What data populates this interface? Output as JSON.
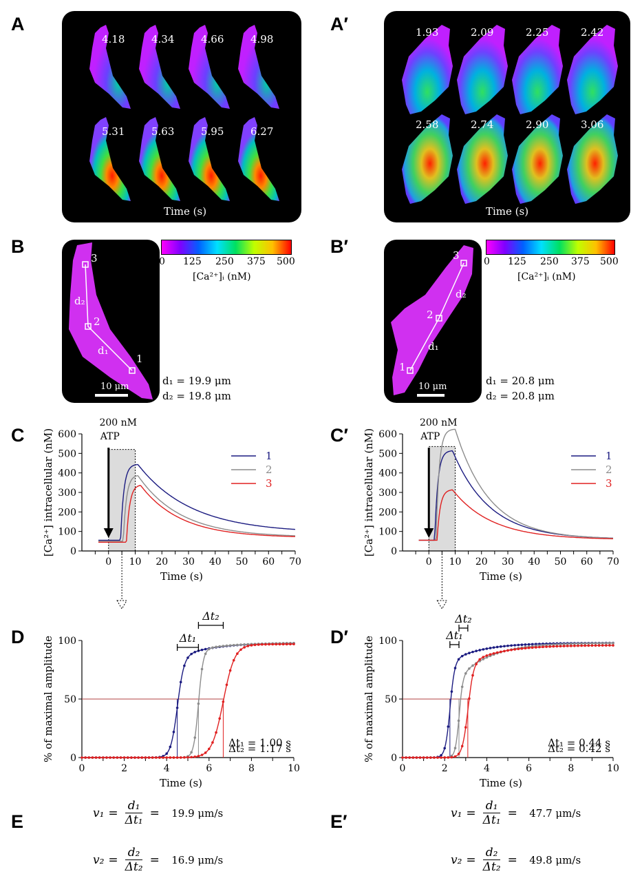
{
  "panel_labels": {
    "A": "A",
    "A_prime": "A′",
    "B": "B",
    "B_prime": "B′",
    "C": "C",
    "C_prime": "C′",
    "D": "D",
    "D_prime": "D′",
    "E": "E",
    "E_prime": "E′"
  },
  "panel_A": {
    "timestamps": [
      "4.18",
      "4.34",
      "4.66",
      "4.98",
      "5.31",
      "5.63",
      "5.95",
      "6.27"
    ],
    "time_label": "Time (s)"
  },
  "panel_A_prime": {
    "timestamps": [
      "1.93",
      "2.09",
      "2.25",
      "2.42",
      "2.58",
      "2.74",
      "2.90",
      "3.06"
    ],
    "time_label": "Time (s)"
  },
  "colorbar": {
    "ticks": [
      "0",
      "125",
      "250",
      "375",
      "500"
    ],
    "label": "[Ca²⁺]ᵢ (nM)"
  },
  "panel_B": {
    "points": [
      "1",
      "2",
      "3"
    ],
    "d1_label": "d₁",
    "d2_label": "d₂",
    "scale_bar": "10 μm",
    "d1_text": "d₁ = 19.9 μm",
    "d2_text": "d₂ = 19.8 μm"
  },
  "panel_B_prime": {
    "points": [
      "1",
      "2",
      "3"
    ],
    "d1_label": "d₁",
    "d2_label": "d₂",
    "scale_bar": "10 μm",
    "d1_text": "d₁ = 20.8 μm",
    "d2_text": "d₂ = 20.8 μm"
  },
  "colors": {
    "series1": "#1a1a80",
    "series2": "#8c8c8c",
    "series3": "#e02020",
    "threshold": "#b04040"
  },
  "stimulus": {
    "line1": "200 nM",
    "line2": "ATP"
  },
  "chart_data": [
    {
      "id": "C",
      "type": "line",
      "xlabel": "Time (s)",
      "ylabel": "[Ca²⁺] intracellular (nM)",
      "xlim": [
        -10,
        70
      ],
      "ylim": [
        0,
        600
      ],
      "xticks": [
        0,
        10,
        20,
        30,
        40,
        50,
        60,
        70
      ],
      "yticks": [
        0,
        100,
        200,
        300,
        400,
        500,
        600
      ],
      "highlight_x": [
        0,
        10
      ],
      "series": [
        {
          "name": "1",
          "baseline": 55,
          "onset": 4.5,
          "peak": 445,
          "peak_t": 11,
          "tau": 20,
          "end": 92
        },
        {
          "name": "2",
          "baseline": 50,
          "onset": 5.5,
          "peak": 390,
          "peak_t": 11,
          "tau": 16,
          "end": 70
        },
        {
          "name": "3",
          "baseline": 45,
          "onset": 6.7,
          "peak": 340,
          "peak_t": 12,
          "tau": 15,
          "end": 68
        }
      ]
    },
    {
      "id": "C_prime",
      "type": "line",
      "xlabel": "Time (s)",
      "ylabel": "[Ca²⁺] intracellular (nM)",
      "xlim": [
        -10,
        70
      ],
      "ylim": [
        0,
        600
      ],
      "xticks": [
        0,
        10,
        20,
        30,
        40,
        50,
        60,
        70
      ],
      "yticks": [
        0,
        100,
        200,
        300,
        400,
        500,
        600
      ],
      "highlight_x": [
        0,
        10
      ],
      "series": [
        {
          "name": "1",
          "baseline": 55,
          "onset": 2.2,
          "peak": 515,
          "peak_t": 9,
          "tau": 14,
          "end": 60
        },
        {
          "name": "2",
          "baseline": 55,
          "onset": 2.7,
          "peak": 625,
          "peak_t": 10,
          "tau": 13,
          "end": 60
        },
        {
          "name": "3",
          "baseline": 55,
          "onset": 3.1,
          "peak": 315,
          "peak_t": 9,
          "tau": 15,
          "end": 58
        }
      ]
    },
    {
      "id": "D",
      "type": "line",
      "xlabel": "Time (s)",
      "ylabel": "% of maximal amplitude",
      "xlim": [
        0,
        10
      ],
      "ylim": [
        0,
        100
      ],
      "xticks": [
        0,
        2,
        4,
        6,
        8,
        10
      ],
      "yticks": [
        0,
        50,
        100
      ],
      "threshold": 50,
      "series": [
        {
          "name": "1",
          "t50": 4.5,
          "rise": 0.35,
          "plateau": 85,
          "late_rise_end": 98
        },
        {
          "name": "2",
          "t50": 5.5,
          "rise": 0.25,
          "plateau": 92,
          "late_rise_end": 98
        },
        {
          "name": "3",
          "t50": 6.67,
          "rise": 0.6,
          "plateau": 96,
          "late_rise_end": 97
        }
      ],
      "annotations": {
        "dt1_label": "Δt₁",
        "dt2_label": "Δt₂",
        "dt1_text": "Δt₁ = 1.00 s",
        "dt2_text": "Δt₂ = 1.17 s"
      }
    },
    {
      "id": "D_prime",
      "type": "line",
      "xlabel": "Time (s)",
      "ylabel": "% of maximal amplitude",
      "xlim": [
        0,
        10
      ],
      "ylim": [
        0,
        100
      ],
      "xticks": [
        0,
        2,
        4,
        6,
        8,
        10
      ],
      "yticks": [
        0,
        50,
        100
      ],
      "threshold": 50,
      "series": [
        {
          "name": "1",
          "t50": 2.25,
          "rise": 0.25,
          "plateau": 82,
          "late_rise_end": 98
        },
        {
          "name": "2",
          "t50": 2.68,
          "rise": 0.2,
          "plateau": 68,
          "late_rise_end": 98
        },
        {
          "name": "3",
          "t50": 3.1,
          "rise": 0.3,
          "plateau": 80,
          "late_rise_end": 96
        }
      ],
      "annotations": {
        "dt1_label": "Δt₁",
        "dt2_label": "Δt₂",
        "dt1_text": "Δt₁ = 0.44 s",
        "dt2_text": "Δt₂ = 0.42 s"
      }
    }
  ],
  "panel_E": {
    "v1": "v₁",
    "d1": "d₁",
    "dt1": "Δt₁",
    "v1_value": "19.9 μm/s",
    "v2": "v₂",
    "d2": "d₂",
    "dt2": "Δt₂",
    "v2_value": "16.9 μm/s"
  },
  "panel_E_prime": {
    "v1": "v₁",
    "d1": "d₁",
    "dt1": "Δt₁",
    "v1_value": "47.7 μm/s",
    "v2": "v₂",
    "d2": "d₂",
    "dt2": "Δt₂",
    "v2_value": "49.8 μm/s"
  }
}
